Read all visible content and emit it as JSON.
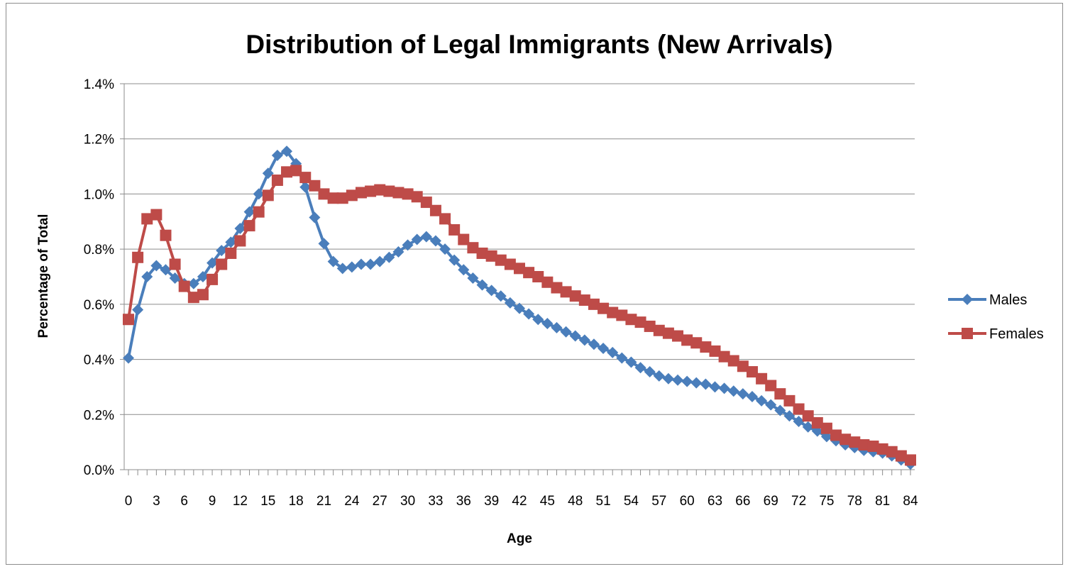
{
  "chart_data": {
    "type": "line",
    "title": "Distribution of Legal Immigrants (New Arrivals)",
    "xlabel": "Age",
    "ylabel": "Percentage of Total",
    "x": [
      0,
      1,
      2,
      3,
      4,
      5,
      6,
      7,
      8,
      9,
      10,
      11,
      12,
      13,
      14,
      15,
      16,
      17,
      18,
      19,
      20,
      21,
      22,
      23,
      24,
      25,
      26,
      27,
      28,
      29,
      30,
      31,
      32,
      33,
      34,
      35,
      36,
      37,
      38,
      39,
      40,
      41,
      42,
      43,
      44,
      45,
      46,
      47,
      48,
      49,
      50,
      51,
      52,
      53,
      54,
      55,
      56,
      57,
      58,
      59,
      60,
      61,
      62,
      63,
      64,
      65,
      66,
      67,
      68,
      69,
      70,
      71,
      72,
      73,
      74,
      75,
      76,
      77,
      78,
      79,
      80,
      81,
      82,
      83,
      84
    ],
    "xticks": [
      "0",
      "3",
      "6",
      "9",
      "12",
      "15",
      "18",
      "21",
      "24",
      "27",
      "30",
      "33",
      "36",
      "39",
      "42",
      "45",
      "48",
      "51",
      "54",
      "57",
      "60",
      "63",
      "66",
      "69",
      "72",
      "75",
      "78",
      "81",
      "84"
    ],
    "xlim": [
      0,
      84
    ],
    "ylim": [
      0,
      1.4
    ],
    "yticks": [
      "0.0%",
      "0.2%",
      "0.4%",
      "0.6%",
      "0.8%",
      "1.0%",
      "1.2%",
      "1.4%"
    ],
    "grid": "horizontal",
    "legend": "right",
    "series": [
      {
        "name": "Males",
        "color": "#4a7ebb",
        "marker": "diamond",
        "values": [
          0.405,
          0.58,
          0.7,
          0.74,
          0.725,
          0.695,
          0.675,
          0.675,
          0.7,
          0.75,
          0.795,
          0.825,
          0.875,
          0.935,
          1.0,
          1.075,
          1.14,
          1.155,
          1.11,
          1.025,
          0.915,
          0.82,
          0.755,
          0.73,
          0.735,
          0.745,
          0.745,
          0.755,
          0.77,
          0.79,
          0.815,
          0.835,
          0.845,
          0.83,
          0.8,
          0.76,
          0.725,
          0.695,
          0.67,
          0.65,
          0.63,
          0.605,
          0.585,
          0.565,
          0.545,
          0.53,
          0.515,
          0.5,
          0.485,
          0.47,
          0.455,
          0.44,
          0.425,
          0.405,
          0.39,
          0.37,
          0.355,
          0.34,
          0.33,
          0.325,
          0.32,
          0.315,
          0.31,
          0.3,
          0.295,
          0.285,
          0.275,
          0.265,
          0.25,
          0.235,
          0.215,
          0.195,
          0.175,
          0.155,
          0.14,
          0.12,
          0.105,
          0.09,
          0.08,
          0.07,
          0.065,
          0.06,
          0.05,
          0.035,
          0.02
        ]
      },
      {
        "name": "Females",
        "color": "#be4b48",
        "marker": "square",
        "values": [
          0.545,
          0.77,
          0.91,
          0.925,
          0.85,
          0.745,
          0.665,
          0.625,
          0.635,
          0.69,
          0.745,
          0.785,
          0.83,
          0.885,
          0.935,
          0.995,
          1.05,
          1.08,
          1.085,
          1.06,
          1.03,
          1.0,
          0.985,
          0.985,
          0.995,
          1.005,
          1.01,
          1.015,
          1.01,
          1.005,
          1.0,
          0.99,
          0.97,
          0.94,
          0.91,
          0.87,
          0.835,
          0.805,
          0.785,
          0.775,
          0.76,
          0.745,
          0.73,
          0.715,
          0.7,
          0.68,
          0.66,
          0.645,
          0.63,
          0.615,
          0.6,
          0.585,
          0.57,
          0.56,
          0.545,
          0.535,
          0.52,
          0.505,
          0.495,
          0.485,
          0.47,
          0.46,
          0.445,
          0.43,
          0.41,
          0.395,
          0.375,
          0.355,
          0.33,
          0.305,
          0.275,
          0.25,
          0.22,
          0.195,
          0.17,
          0.15,
          0.125,
          0.11,
          0.1,
          0.09,
          0.085,
          0.075,
          0.065,
          0.05,
          0.035
        ]
      }
    ]
  }
}
